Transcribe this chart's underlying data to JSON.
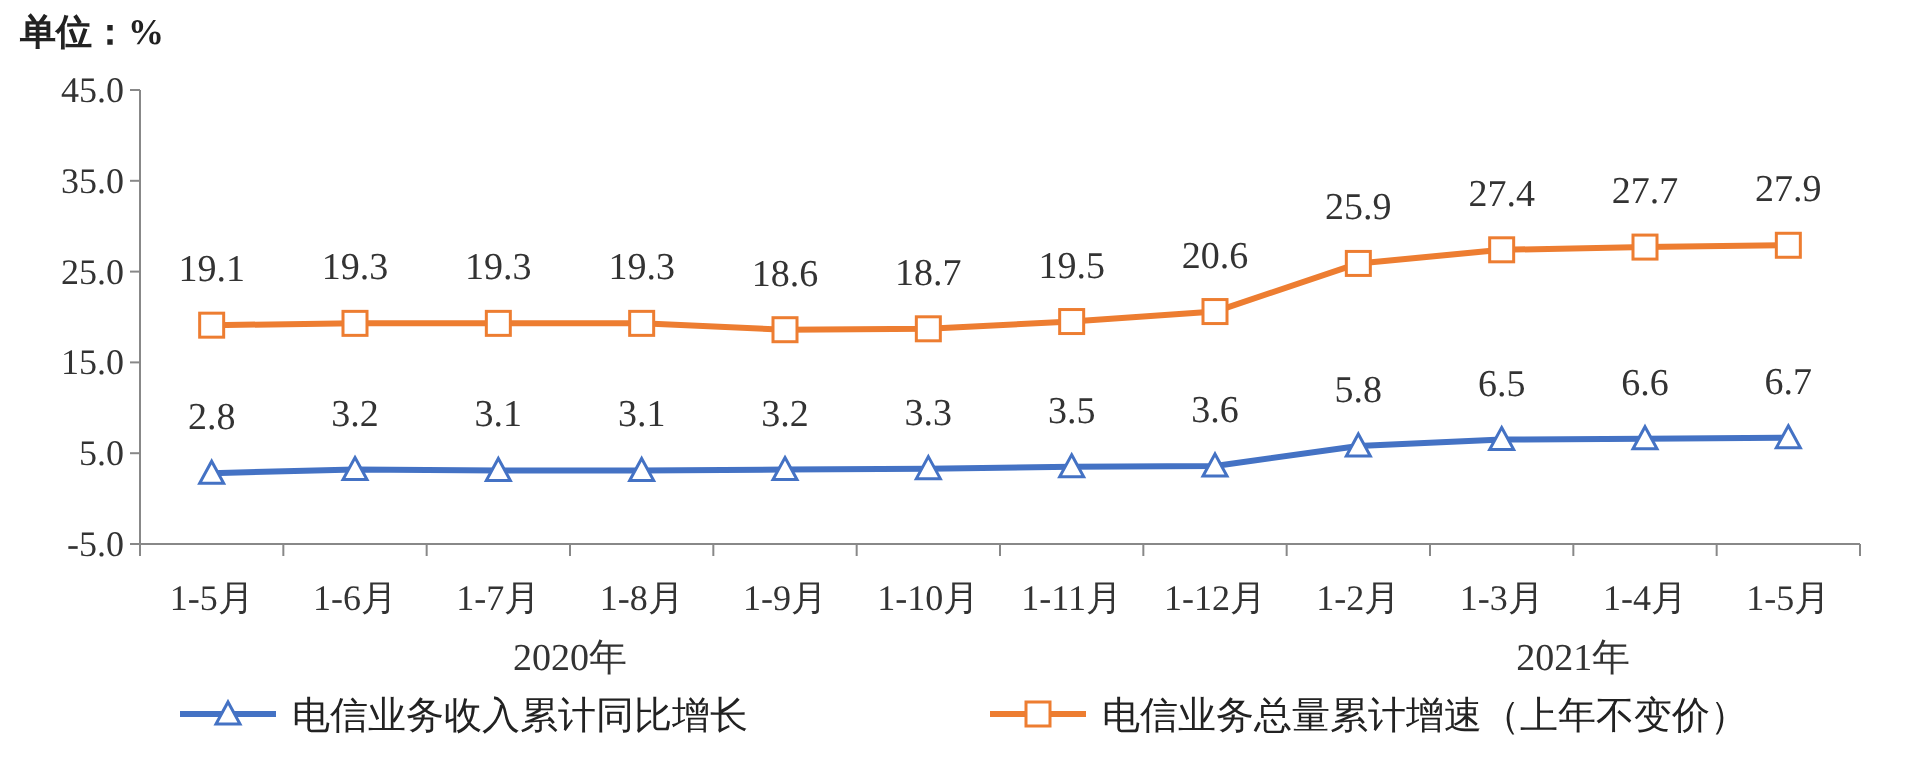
{
  "chart_data": {
    "type": "line",
    "ylabel": "单位：%",
    "categories": [
      "1-5月",
      "1-6月",
      "1-7月",
      "1-8月",
      "1-9月",
      "1-10月",
      "1-11月",
      "1-12月",
      "1-2月",
      "1-3月",
      "1-4月",
      "1-5月"
    ],
    "series": [
      {
        "name": "电信业务收入累计同比增长",
        "color": "#4472c4",
        "marker": "triangle",
        "values": [
          2.8,
          3.2,
          3.1,
          3.1,
          3.2,
          3.3,
          3.5,
          3.6,
          5.8,
          6.5,
          6.6,
          6.7
        ]
      },
      {
        "name": "电信业务总量累计增速（上年不变价）",
        "color": "#ed7d31",
        "marker": "square",
        "values": [
          19.1,
          19.3,
          19.3,
          19.3,
          18.6,
          18.7,
          19.5,
          20.6,
          25.9,
          27.4,
          27.7,
          27.9
        ]
      }
    ],
    "ylim": [
      -5,
      45
    ],
    "yticks": [
      {
        "value": -5,
        "label": "-5.0"
      },
      {
        "value": 5,
        "label": "5.0"
      },
      {
        "value": 15,
        "label": "15.0"
      },
      {
        "value": 25,
        "label": "25.0"
      },
      {
        "value": 35,
        "label": "35.0"
      },
      {
        "value": 45,
        "label": "45.0"
      }
    ],
    "data_labels": true,
    "grid": false,
    "legend": "bottom",
    "annotations": [
      "2020年",
      "2021年"
    ]
  }
}
